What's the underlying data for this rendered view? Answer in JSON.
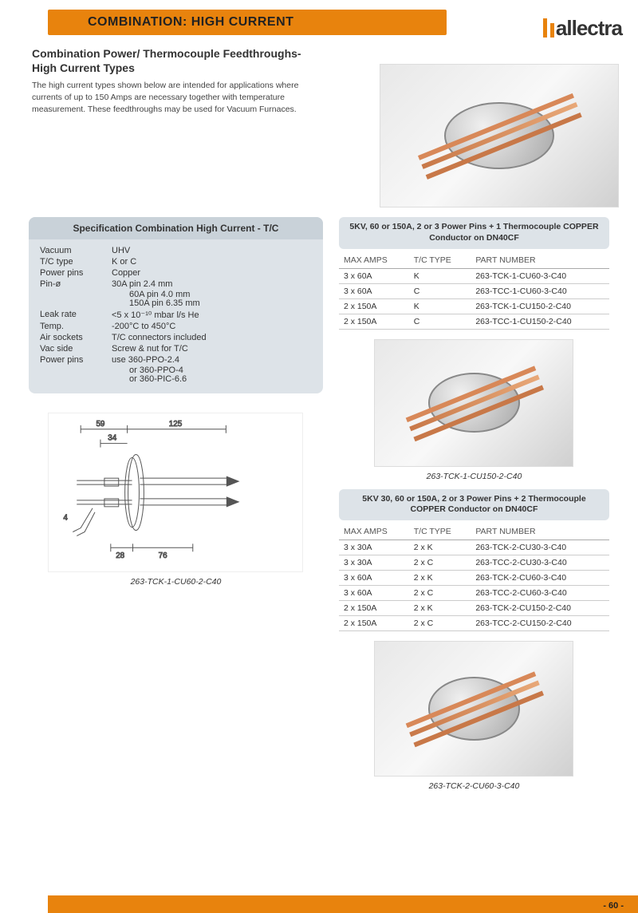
{
  "banner": {
    "title": "COMBINATION: HIGH CURRENT"
  },
  "brand": {
    "name": "allectra",
    "accent": "#e8830d"
  },
  "intro": {
    "heading": "Combination Power/ Thermocouple Feedthroughs-High Current Types",
    "body": "The high current types shown below are intended for applications where currents of up to 150 Amps are necessary together with temperature measurement. These feedthroughs may be used for Vacuum Furnaces."
  },
  "spec": {
    "title": "Specification Combination High Current - T/C",
    "rows": [
      {
        "label": "Vacuum",
        "value": "UHV"
      },
      {
        "label": "T/C type",
        "value": "K or C"
      },
      {
        "label": "Power pins",
        "value": "Copper"
      },
      {
        "label": "Pin-ø",
        "value": "30A pin 2.4 mm"
      }
    ],
    "pin_sub": [
      "60A pin 4.0 mm",
      "150A pin 6.35 mm"
    ],
    "rows2": [
      {
        "label": "Leak rate",
        "value": "<5 x 10⁻¹⁰ mbar l/s  He"
      },
      {
        "label": "Temp.",
        "value": "-200°C to 450°C"
      },
      {
        "label": "Air sockets",
        "value": "T/C connectors included"
      },
      {
        "label": "Vac side",
        "value": "Screw & nut for T/C"
      },
      {
        "label": "Power pins",
        "value": "use    360-PPO-2.4"
      }
    ],
    "power_sub": [
      "or     360-PPO-4",
      "or     360-PIC-6.6"
    ]
  },
  "table1": {
    "title": "5KV, 60 or 150A, 2 or 3 Power Pins + 1 Thermocouple COPPER Conductor on DN40CF",
    "columns": [
      "MAX AMPS",
      "T/C TYPE",
      "PART NUMBER"
    ],
    "rows": [
      [
        "3 x   60A",
        "K",
        "263-TCK-1-CU60-3-C40"
      ],
      [
        "3 x   60A",
        "C",
        "263-TCC-1-CU60-3-C40"
      ],
      [
        "2 x 150A",
        "K",
        "263-TCK-1-CU150-2-C40"
      ],
      [
        "2 x 150A",
        "C",
        "263-TCC-1-CU150-2-C40"
      ]
    ]
  },
  "table2": {
    "title": "5KV 30, 60 or 150A, 2 or 3 Power Pins + 2 Thermocouple COPPER Conductor on DN40CF",
    "columns": [
      "MAX AMPS",
      "T/C TYPE",
      "PART NUMBER"
    ],
    "rows": [
      [
        "3 x   30A",
        "2 x K",
        "263-TCK-2-CU30-3-C40"
      ],
      [
        "3 x   30A",
        "2 x C",
        "263-TCC-2-CU30-3-C40"
      ],
      [
        "3 x   60A",
        "2 x K",
        "263-TCK-2-CU60-3-C40"
      ],
      [
        "3 x   60A",
        "2 x C",
        "263-TCC-2-CU60-3-C40"
      ],
      [
        "2 x 150A",
        "2 x K",
        "263-TCK-2-CU150-2-C40"
      ],
      [
        "2 x 150A",
        "2 x C",
        "263-TCC-2-CU150-2-C40"
      ]
    ]
  },
  "captions": {
    "mid": "263-TCK-1-CU150-2-C40",
    "diag": "263-TCK-1-CU60-2-C40",
    "bot": "263-TCK-2-CU60-3-C40"
  },
  "diagram": {
    "dims": {
      "d59": "59",
      "d125": "125",
      "d34": "34",
      "d28": "28",
      "d76": "76",
      "d4": "4"
    }
  },
  "page": "- 60 -",
  "colors": {
    "banner_bg": "#e8830d",
    "box_bg": "#dde3e8",
    "box_header_bg": "#c9d2d9",
    "text": "#333333",
    "border": "#cccccc"
  }
}
